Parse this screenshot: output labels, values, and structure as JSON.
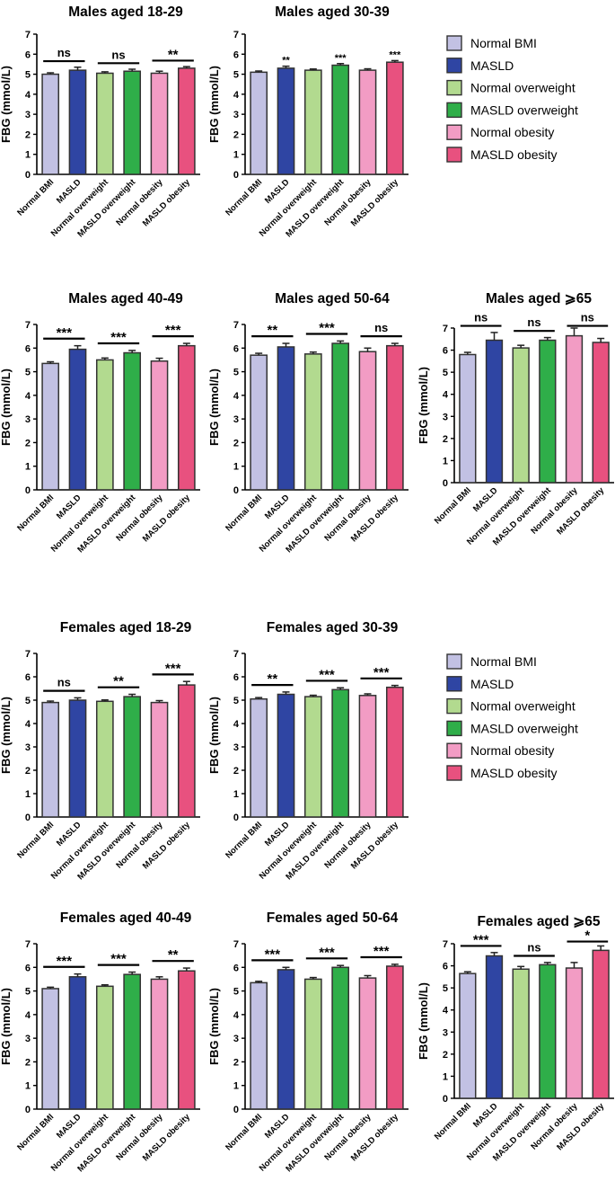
{
  "colors": {
    "Normal BMI": "#c2c1e3",
    "MASLD": "#2f45a3",
    "Normal overweight": "#b2da8f",
    "MASLD overweight": "#2fae49",
    "Normal obesity": "#f29cc4",
    "MASLD obesity": "#e8517f"
  },
  "legends": [
    {
      "items": [
        "Normal BMI",
        "MASLD",
        "Normal overweight",
        "MASLD overweight",
        "Normal obesity",
        "MASLD obesity"
      ]
    },
    {
      "items": [
        "Normal BMI",
        "MASLD",
        "Normal overweight",
        "MASLD overweight",
        "Normal obesity",
        "MASLD obesity"
      ]
    }
  ],
  "chart_data": [
    {
      "type": "bar",
      "title": "Males aged 18-29",
      "ylabel": "FBG (mmol/L)",
      "ylim": [
        0,
        7
      ],
      "yticks": [
        "0",
        "1",
        "2",
        "3",
        "4",
        "5",
        "6",
        "7"
      ],
      "categories": [
        "Normal BMI",
        "MASLD",
        "Normal overweight",
        "MASLD overweight",
        "Normal obesity",
        "MASLD obesity"
      ],
      "values": [
        5.0,
        5.2,
        5.05,
        5.15,
        5.05,
        5.3
      ],
      "errors": [
        0.07,
        0.15,
        0.07,
        0.1,
        0.1,
        0.08
      ],
      "brackets": [
        {
          "pair": [
            0,
            1
          ],
          "label": "ns"
        },
        {
          "pair": [
            2,
            3
          ],
          "label": "ns"
        },
        {
          "pair": [
            4,
            5
          ],
          "label": "**"
        }
      ],
      "bar_marks": []
    },
    {
      "type": "bar",
      "title": "Males aged 30-39",
      "ylabel": "FBG (mmol/L)",
      "ylim": [
        0,
        7
      ],
      "yticks": [
        "0",
        "1",
        "2",
        "3",
        "4",
        "5",
        "6",
        "7"
      ],
      "categories": [
        "Normal BMI",
        "MASLD",
        "Normal overweight",
        "MASLD overweight",
        "Normal obesity",
        "MASLD obesity"
      ],
      "values": [
        5.1,
        5.3,
        5.2,
        5.45,
        5.2,
        5.6
      ],
      "errors": [
        0.06,
        0.1,
        0.06,
        0.08,
        0.07,
        0.08
      ],
      "brackets": [],
      "bar_marks": [
        {
          "index": 1,
          "label": "**"
        },
        {
          "index": 3,
          "label": "***"
        },
        {
          "index": 5,
          "label": "***"
        }
      ]
    },
    {
      "type": "bar",
      "title": "Males aged 40-49",
      "ylabel": "FBG (mmol/L)",
      "ylim": [
        0,
        7
      ],
      "yticks": [
        "0",
        "1",
        "2",
        "3",
        "4",
        "5",
        "6",
        "7"
      ],
      "categories": [
        "Normal BMI",
        "MASLD",
        "Normal overweight",
        "MASLD overweight",
        "Normal obesity",
        "MASLD obesity"
      ],
      "values": [
        5.35,
        5.95,
        5.5,
        5.8,
        5.45,
        6.1
      ],
      "errors": [
        0.07,
        0.15,
        0.08,
        0.1,
        0.12,
        0.1
      ],
      "brackets": [
        {
          "pair": [
            0,
            1
          ],
          "label": "***"
        },
        {
          "pair": [
            2,
            3
          ],
          "label": "***"
        },
        {
          "pair": [
            4,
            5
          ],
          "label": "***"
        }
      ],
      "bar_marks": []
    },
    {
      "type": "bar",
      "title": "Males aged 50-64",
      "ylabel": "FBG (mmol/L)",
      "ylim": [
        0,
        7
      ],
      "yticks": [
        "0",
        "1",
        "2",
        "3",
        "4",
        "5",
        "6",
        "7"
      ],
      "categories": [
        "Normal BMI",
        "MASLD",
        "Normal overweight",
        "MASLD overweight",
        "Normal obesity",
        "MASLD obesity"
      ],
      "values": [
        5.7,
        6.05,
        5.75,
        6.2,
        5.85,
        6.1
      ],
      "errors": [
        0.08,
        0.15,
        0.08,
        0.1,
        0.15,
        0.1
      ],
      "brackets": [
        {
          "pair": [
            0,
            1
          ],
          "label": "**"
        },
        {
          "pair": [
            2,
            3
          ],
          "label": "***"
        },
        {
          "pair": [
            4,
            5
          ],
          "label": "ns"
        }
      ],
      "bar_marks": []
    },
    {
      "type": "bar",
      "title": "Males aged ⩾65",
      "ylabel": "FBG (mmol/L)",
      "ylim": [
        0,
        7
      ],
      "yticks": [
        "0",
        "1",
        "2",
        "3",
        "4",
        "5",
        "6",
        "7"
      ],
      "categories": [
        "Normal BMI",
        "MASLD",
        "Normal overweight",
        "MASLD overweight",
        "Normal obesity",
        "MASLD obesity"
      ],
      "values": [
        5.8,
        6.45,
        6.1,
        6.45,
        6.65,
        6.35
      ],
      "errors": [
        0.1,
        0.35,
        0.12,
        0.12,
        0.35,
        0.18
      ],
      "brackets": [
        {
          "pair": [
            0,
            1
          ],
          "label": "ns"
        },
        {
          "pair": [
            2,
            3
          ],
          "label": "ns"
        },
        {
          "pair": [
            4,
            5
          ],
          "label": "ns"
        }
      ],
      "bar_marks": []
    },
    {
      "type": "bar",
      "title": "Females aged 18-29",
      "ylabel": "FBG (mmol/L)",
      "ylim": [
        0,
        7
      ],
      "yticks": [
        "0",
        "1",
        "2",
        "3",
        "4",
        "5",
        "6",
        "7"
      ],
      "categories": [
        "Normal BMI",
        "MASLD",
        "Normal overweight",
        "MASLD overweight",
        "Normal obesity",
        "MASLD obesity"
      ],
      "values": [
        4.9,
        5.0,
        4.95,
        5.15,
        4.9,
        5.65
      ],
      "errors": [
        0.06,
        0.1,
        0.06,
        0.1,
        0.08,
        0.15
      ],
      "brackets": [
        {
          "pair": [
            0,
            1
          ],
          "label": "ns"
        },
        {
          "pair": [
            2,
            3
          ],
          "label": "**"
        },
        {
          "pair": [
            4,
            5
          ],
          "label": "***"
        }
      ],
      "bar_marks": []
    },
    {
      "type": "bar",
      "title": "Females aged 30-39",
      "ylabel": "FBG (mmol/L)",
      "ylim": [
        0,
        7
      ],
      "yticks": [
        "0",
        "1",
        "2",
        "3",
        "4",
        "5",
        "6",
        "7"
      ],
      "categories": [
        "Normal BMI",
        "MASLD",
        "Normal overweight",
        "MASLD overweight",
        "Normal obesity",
        "MASLD obesity"
      ],
      "values": [
        5.05,
        5.25,
        5.15,
        5.45,
        5.2,
        5.55
      ],
      "errors": [
        0.06,
        0.1,
        0.06,
        0.08,
        0.07,
        0.08
      ],
      "brackets": [
        {
          "pair": [
            0,
            1
          ],
          "label": "**"
        },
        {
          "pair": [
            2,
            3
          ],
          "label": "***"
        },
        {
          "pair": [
            4,
            5
          ],
          "label": "***"
        }
      ],
      "bar_marks": []
    },
    {
      "type": "bar",
      "title": "Females aged 40-49",
      "ylabel": "FBG (mmol/L)",
      "ylim": [
        0,
        7
      ],
      "yticks": [
        "0",
        "1",
        "2",
        "3",
        "4",
        "5",
        "6",
        "7"
      ],
      "categories": [
        "Normal BMI",
        "MASLD",
        "Normal overweight",
        "MASLD overweight",
        "Normal obesity",
        "MASLD obesity"
      ],
      "values": [
        5.1,
        5.6,
        5.2,
        5.7,
        5.5,
        5.85
      ],
      "errors": [
        0.06,
        0.12,
        0.06,
        0.1,
        0.1,
        0.12
      ],
      "brackets": [
        {
          "pair": [
            0,
            1
          ],
          "label": "***"
        },
        {
          "pair": [
            2,
            3
          ],
          "label": "***"
        },
        {
          "pair": [
            4,
            5
          ],
          "label": "**"
        }
      ],
      "bar_marks": []
    },
    {
      "type": "bar",
      "title": "Females aged 50-64",
      "ylabel": "FBG (mmol/L)",
      "ylim": [
        0,
        7
      ],
      "yticks": [
        "0",
        "1",
        "2",
        "3",
        "4",
        "5",
        "6",
        "7"
      ],
      "categories": [
        "Normal BMI",
        "MASLD",
        "Normal overweight",
        "MASLD overweight",
        "Normal obesity",
        "MASLD obesity"
      ],
      "values": [
        5.35,
        5.9,
        5.5,
        6.0,
        5.55,
        6.05
      ],
      "errors": [
        0.06,
        0.1,
        0.07,
        0.08,
        0.1,
        0.08
      ],
      "brackets": [
        {
          "pair": [
            0,
            1
          ],
          "label": "***"
        },
        {
          "pair": [
            2,
            3
          ],
          "label": "***"
        },
        {
          "pair": [
            4,
            5
          ],
          "label": "***"
        }
      ],
      "bar_marks": []
    },
    {
      "type": "bar",
      "title": "Females aged ⩾65",
      "ylabel": "FBG (mmol/L)",
      "ylim": [
        0,
        7
      ],
      "yticks": [
        "0",
        "1",
        "2",
        "3",
        "4",
        "5",
        "6",
        "7"
      ],
      "categories": [
        "Normal BMI",
        "MASLD",
        "Normal overweight",
        "MASLD overweight",
        "Normal obesity",
        "MASLD obesity"
      ],
      "values": [
        5.65,
        6.45,
        5.85,
        6.05,
        5.9,
        6.7
      ],
      "errors": [
        0.08,
        0.15,
        0.12,
        0.1,
        0.25,
        0.2
      ],
      "brackets": [
        {
          "pair": [
            0,
            1
          ],
          "label": "***"
        },
        {
          "pair": [
            2,
            3
          ],
          "label": "ns"
        },
        {
          "pair": [
            4,
            5
          ],
          "label": "*"
        }
      ],
      "bar_marks": []
    }
  ]
}
